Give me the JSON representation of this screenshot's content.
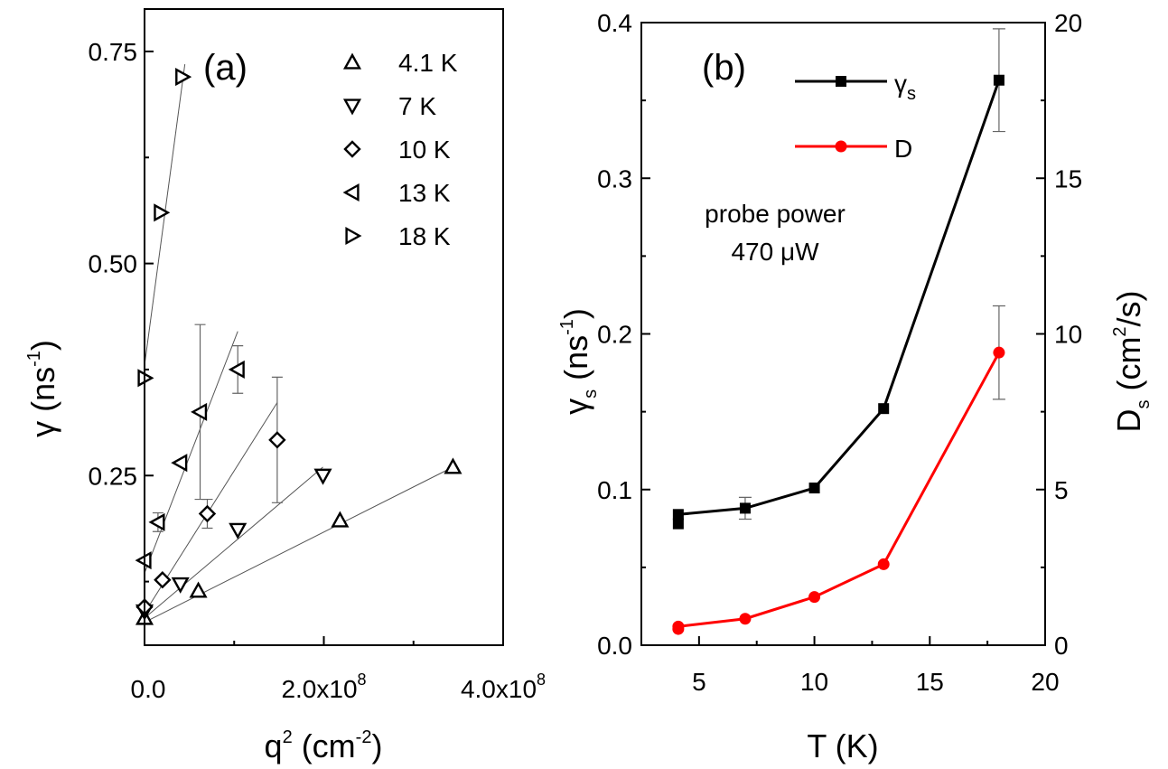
{
  "chart_data": [
    {
      "panel": "(a)",
      "type": "scatter",
      "xlabel": "q",
      "xlabel_sup": "2",
      "xlabel_rest": " (cm",
      "xlabel_sup2": "-2",
      "xlabel_end": ")",
      "ylabel": "γ (ns",
      "ylabel_sup": "-1",
      "ylabel_end": ")",
      "xlim": [
        0,
        400000000
      ],
      "ylim": [
        0.05,
        0.8
      ],
      "x_ticks": [
        {
          "value": 0,
          "label": "0.0",
          "exp": ""
        },
        {
          "value": 200000000,
          "label": "2.0x10",
          "exp": "8"
        },
        {
          "value": 400000000,
          "label": "4.0x10",
          "exp": "8"
        }
      ],
      "y_ticks": [
        {
          "value": 0.25,
          "label": "0.25"
        },
        {
          "value": 0.5,
          "label": "0.50"
        },
        {
          "value": 0.75,
          "label": "0.75"
        }
      ],
      "legend_position": "top-right",
      "series": [
        {
          "name": "4.1 K",
          "marker": "triangle-up",
          "x": [
            0,
            60000000,
            218000000,
            344000000
          ],
          "y": [
            0.082,
            0.114,
            0.197,
            0.26
          ],
          "err": [
            0,
            0,
            0,
            0
          ],
          "fit": [
            [
              0,
              0.077
            ],
            [
              344000000,
              0.26
            ]
          ]
        },
        {
          "name": "7 K",
          "marker": "triangle-down",
          "x": [
            0,
            40000000,
            104000000,
            199000000
          ],
          "y": [
            0.09,
            0.122,
            0.186,
            0.25
          ],
          "err": [
            0,
            0,
            0,
            0
          ],
          "fit": [
            [
              0,
              0.082
            ],
            [
              199000000,
              0.26
            ]
          ]
        },
        {
          "name": "10 K",
          "marker": "diamond",
          "x": [
            0,
            20000000,
            70000000,
            148000000
          ],
          "y": [
            0.095,
            0.127,
            0.205,
            0.292
          ],
          "err": [
            0,
            0,
            0.017,
            0.074
          ],
          "fit": [
            [
              0,
              0.088
            ],
            [
              148000000,
              0.336
            ]
          ]
        },
        {
          "name": "13 K",
          "marker": "triangle-left",
          "x": [
            0,
            15000000,
            40000000,
            62000000,
            104000000
          ],
          "y": [
            0.15,
            0.195,
            0.265,
            0.325,
            0.375
          ],
          "err": [
            0,
            0.011,
            0,
            0.103,
            0.028
          ],
          "fit": [
            [
              0,
              0.135
            ],
            [
              104000000,
              0.42
            ]
          ]
        },
        {
          "name": "18 K",
          "marker": "triangle-right",
          "x": [
            0,
            18000000,
            42000000
          ],
          "y": [
            0.365,
            0.56,
            0.72
          ],
          "err": [
            0,
            0,
            0
          ],
          "fit": [
            [
              0,
              0.38
            ],
            [
              45000000,
              0.735
            ]
          ]
        }
      ]
    },
    {
      "panel": "(b)",
      "type": "line",
      "xlabel": "T (K)",
      "ylabel": "γ",
      "ylabel_sub": "s",
      "ylabel_rest": " (ns",
      "ylabel_sup": "-1",
      "ylabel_end": ")",
      "y2label": "D",
      "y2label_sub": "s",
      "y2label_rest": " (cm",
      "y2label_sup": "2",
      "y2label_end": "/s)",
      "xlim": [
        2.5,
        20
      ],
      "ylim": [
        0,
        0.4
      ],
      "y2lim": [
        0,
        20
      ],
      "x_ticks": [
        5,
        10,
        15,
        20
      ],
      "y_ticks": [
        {
          "value": 0.0,
          "label": "0.0"
        },
        {
          "value": 0.1,
          "label": "0.1"
        },
        {
          "value": 0.2,
          "label": "0.2"
        },
        {
          "value": 0.3,
          "label": "0.3"
        },
        {
          "value": 0.4,
          "label": "0.4"
        }
      ],
      "y2_ticks": [
        0,
        5,
        10,
        15,
        20
      ],
      "annotation_line1": "probe power",
      "annotation_line2": "470 μW",
      "legend_position": "top",
      "series": [
        {
          "name": "γ",
          "name_sub": "s",
          "axis": "left",
          "color": "#000000",
          "marker": "square",
          "x": [
            4.1,
            4.1,
            7,
            10,
            13,
            18
          ],
          "y": [
            0.078,
            0.084,
            0.088,
            0.101,
            0.152,
            0.363
          ],
          "err": [
            0,
            0,
            0.007,
            0,
            0,
            0.033
          ]
        },
        {
          "name": "D",
          "axis": "right",
          "color": "#ff0000",
          "marker": "circle",
          "x": [
            4.1,
            4.1,
            7,
            10,
            13,
            18
          ],
          "y": [
            0.52,
            0.6,
            0.85,
            1.55,
            2.6,
            9.4
          ],
          "err": [
            0,
            0,
            0,
            0,
            0,
            1.5
          ]
        }
      ]
    }
  ]
}
